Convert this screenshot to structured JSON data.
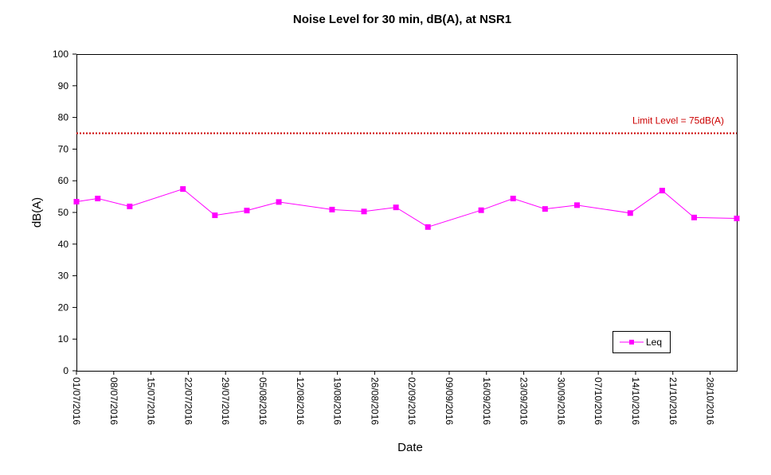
{
  "chart_data": {
    "type": "line",
    "title": "Noise Level for 30 min, dB(A), at NSR1",
    "xlabel": "Date",
    "ylabel": "dB(A)",
    "ylim": [
      0,
      100
    ],
    "yticks": [
      0,
      10,
      20,
      30,
      40,
      50,
      60,
      70,
      80,
      90,
      100
    ],
    "xlim": [
      "2016-07-01",
      "2016-11-02"
    ],
    "xtick_labels": [
      "01/07/2016",
      "08/07/2016",
      "15/07/2016",
      "22/07/2016",
      "29/07/2016",
      "05/08/2016",
      "12/08/2016",
      "19/08/2016",
      "26/08/2016",
      "02/09/2016",
      "09/09/2016",
      "16/09/2016",
      "23/09/2016",
      "30/09/2016",
      "07/10/2016",
      "14/10/2016",
      "21/10/2016",
      "28/10/2016"
    ],
    "grid": false,
    "legend_position": "bottom-right",
    "series": [
      {
        "name": "Leq",
        "color": "#ff00ff",
        "marker": "square",
        "x": [
          "2016-07-01",
          "2016-07-05",
          "2016-07-11",
          "2016-07-21",
          "2016-07-27",
          "2016-08-02",
          "2016-08-08",
          "2016-08-18",
          "2016-08-24",
          "2016-08-30",
          "2016-09-05",
          "2016-09-15",
          "2016-09-21",
          "2016-09-27",
          "2016-10-03",
          "2016-10-13",
          "2016-10-19",
          "2016-10-25",
          "2016-11-02"
        ],
        "y": [
          53.4,
          54.4,
          51.9,
          57.4,
          49.1,
          50.6,
          53.3,
          50.9,
          50.3,
          51.6,
          45.4,
          50.7,
          54.4,
          51.1,
          52.3,
          49.8,
          56.9,
          48.4,
          48.1
        ]
      }
    ],
    "reference_lines": [
      {
        "label": "Limit Level = 75dB(A)",
        "value": 75,
        "color": "#cc0000",
        "style": "dotted"
      }
    ]
  }
}
